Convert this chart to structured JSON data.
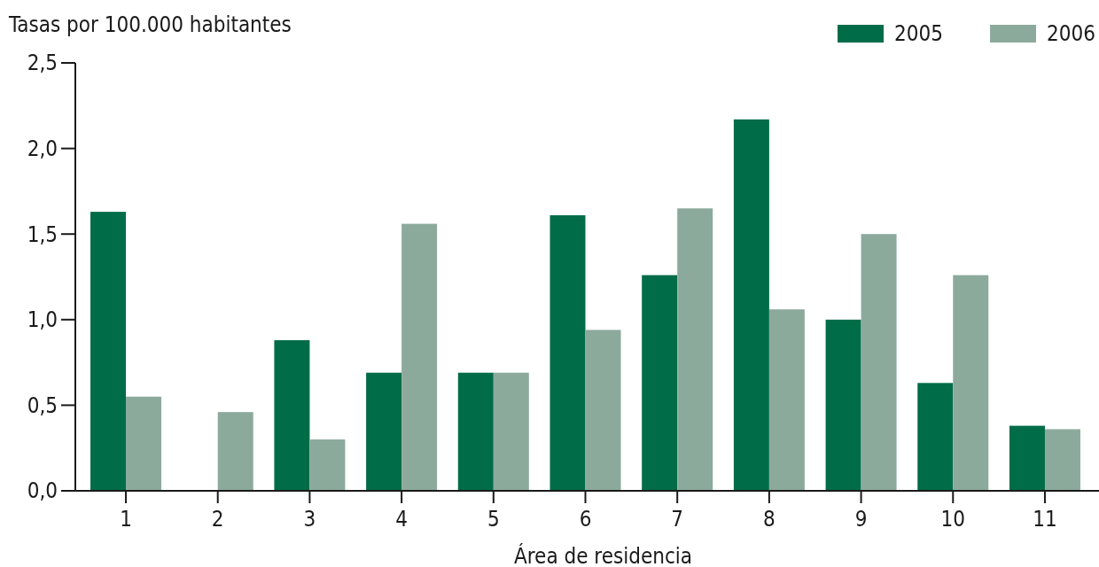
{
  "chart_data": {
    "type": "bar",
    "xlabel": "Área de residencia",
    "ylabel": "Tasas por 100.000 habitantes",
    "categories": [
      "1",
      "2",
      "3",
      "4",
      "5",
      "6",
      "7",
      "8",
      "9",
      "10",
      "11"
    ],
    "series": [
      {
        "name": "2005",
        "color": "#006c48",
        "values": [
          1.63,
          0,
          0.88,
          0.69,
          0.69,
          1.61,
          1.26,
          2.17,
          1.0,
          0.63,
          0.38
        ]
      },
      {
        "name": "2006",
        "color": "#8caa9c",
        "values": [
          0.55,
          0.46,
          0.3,
          1.56,
          0.69,
          0.94,
          1.65,
          1.06,
          1.5,
          1.26,
          0.36
        ]
      }
    ],
    "ylim": [
      0,
      2.5
    ],
    "yticks": [
      {
        "value": 0,
        "label": "0,0"
      },
      {
        "value": 0.5,
        "label": "0,5"
      },
      {
        "value": 1,
        "label": "1,0"
      },
      {
        "value": 1.5,
        "label": "1,5"
      },
      {
        "value": 2,
        "label": "2,0"
      },
      {
        "value": 2.5,
        "label": "2,5"
      }
    ],
    "grid": false,
    "legend": "top right"
  }
}
